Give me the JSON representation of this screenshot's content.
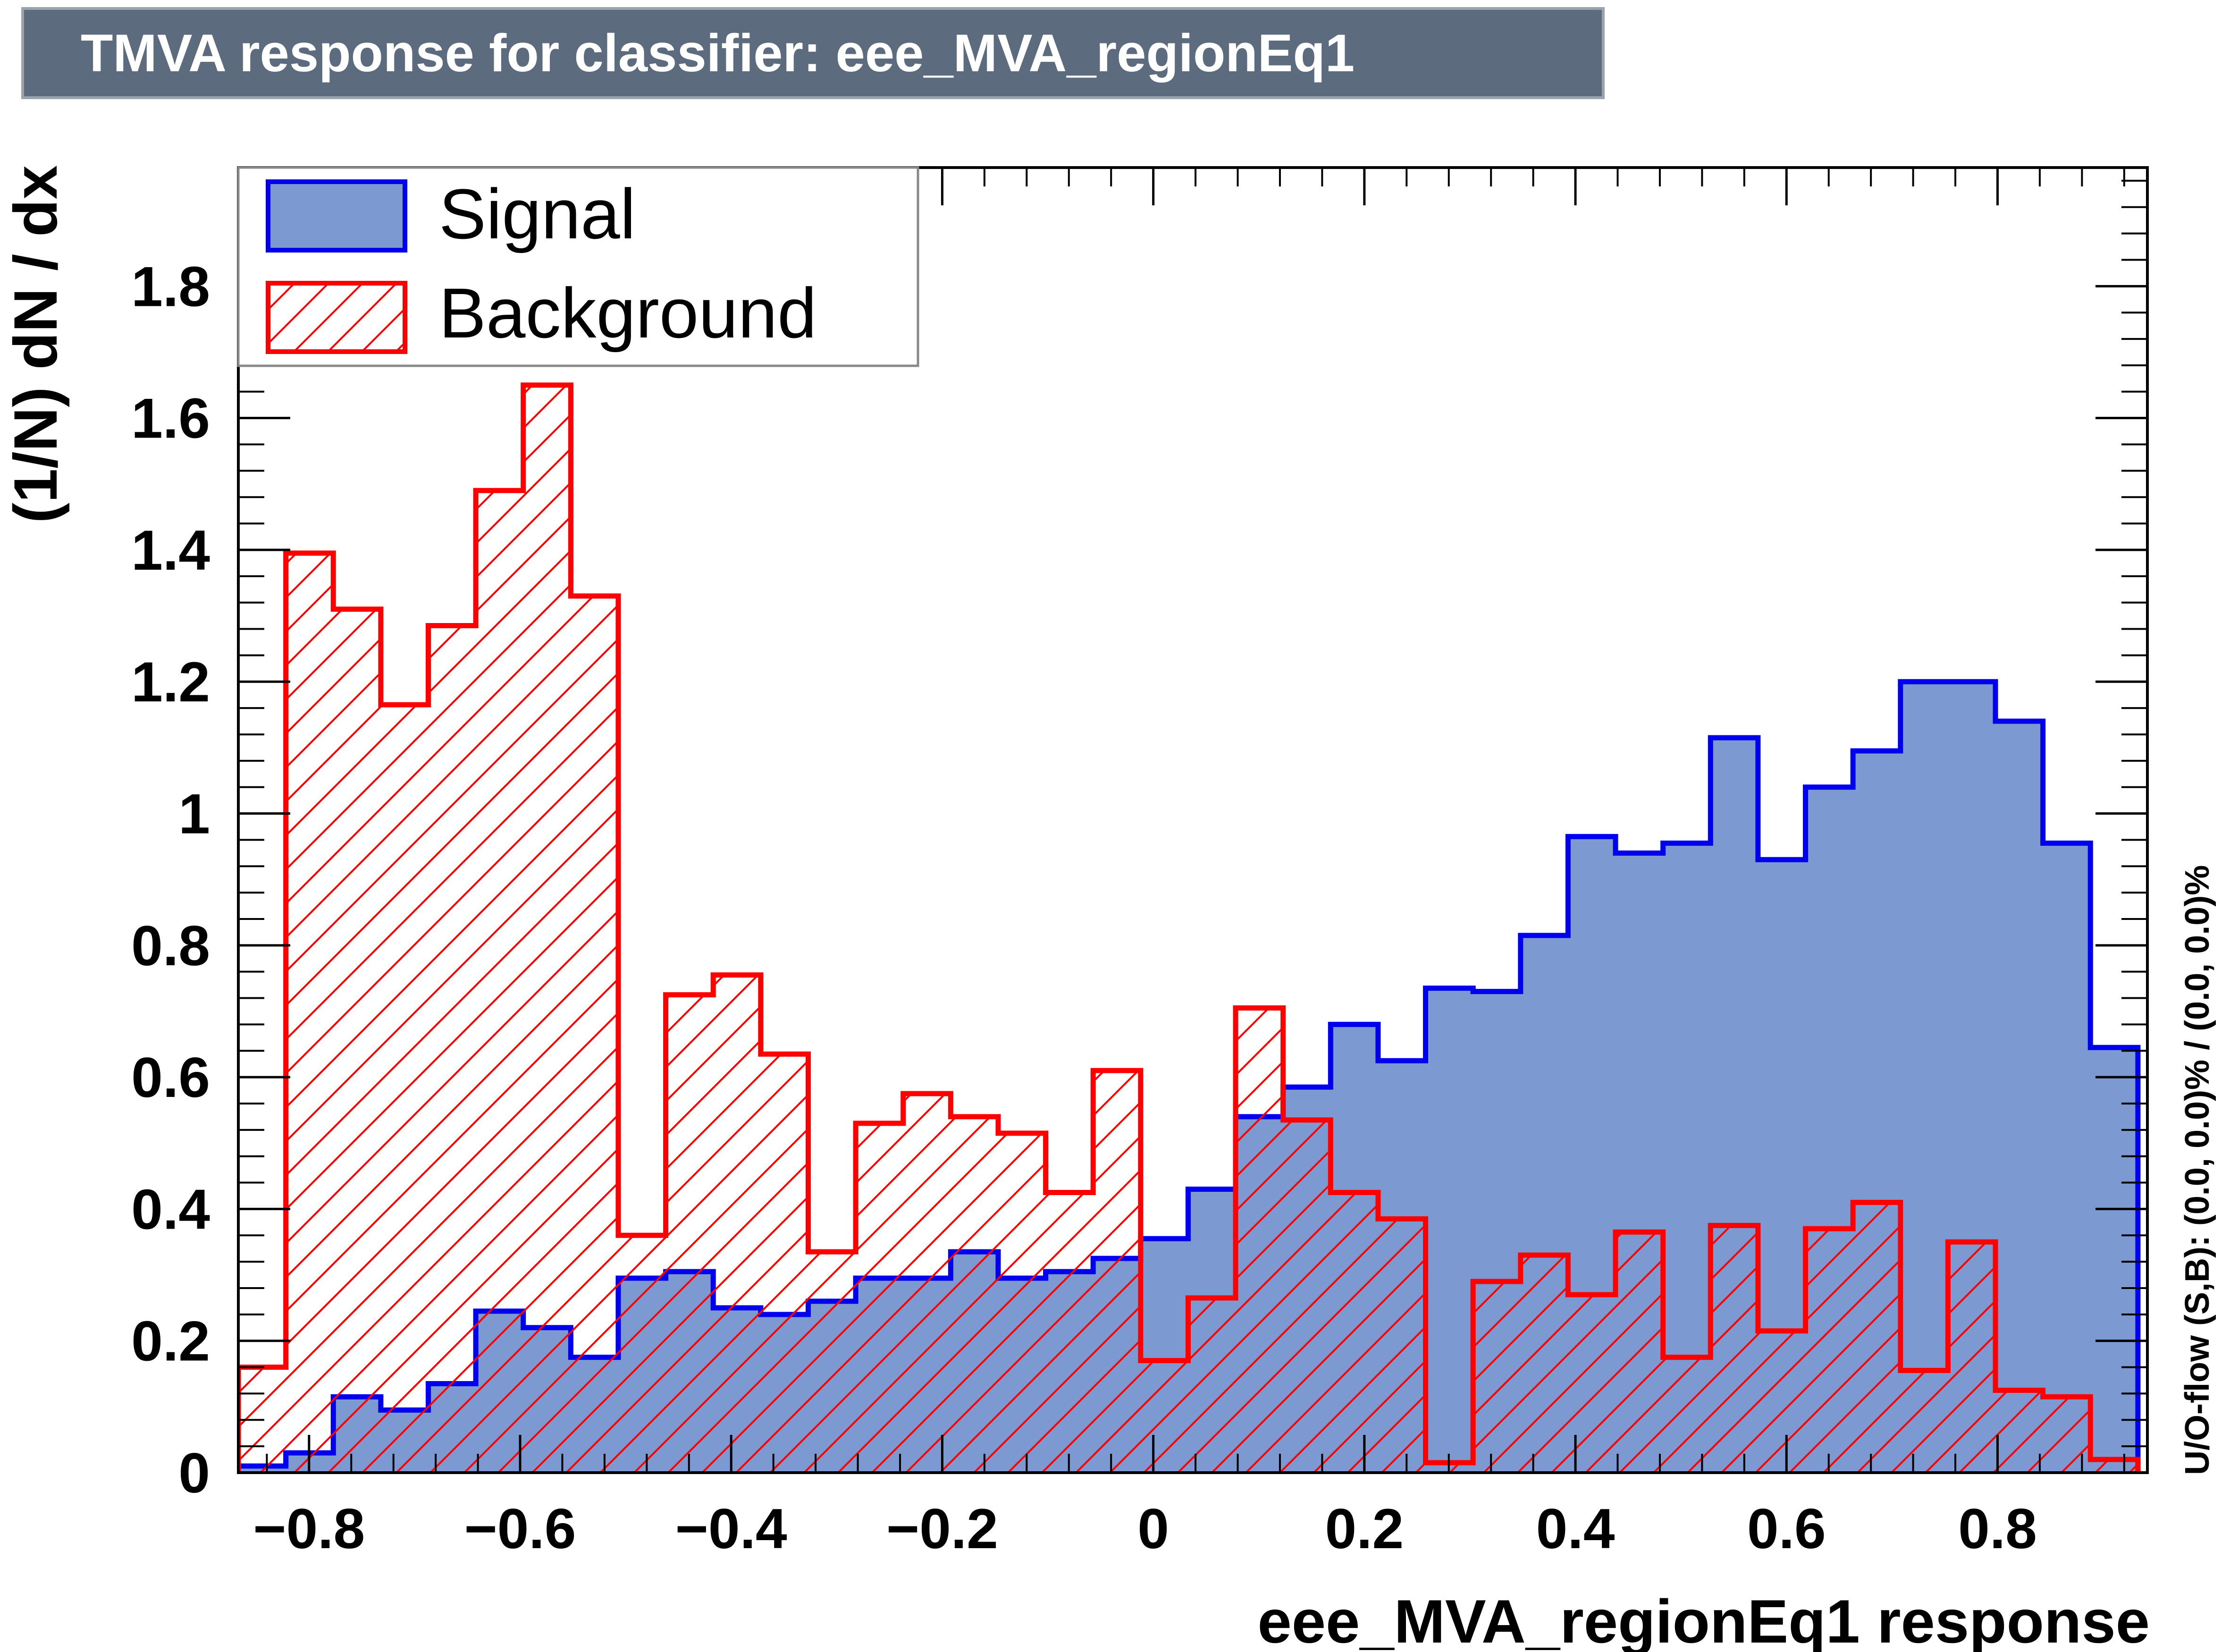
{
  "title": "TMVA response for classifier: eee_MVA_regionEq1",
  "chart_data": {
    "type": "histogram",
    "xlabel": "eee_MVA_regionEq1 response",
    "ylabel": "(1/N) dN / dx",
    "xlim": [
      -0.867,
      0.942
    ],
    "ylim": [
      0,
      1.98
    ],
    "bin_edges": [
      -0.867,
      -0.822,
      -0.777,
      -0.732,
      -0.687,
      -0.642,
      -0.597,
      -0.552,
      -0.507,
      -0.462,
      -0.417,
      -0.372,
      -0.327,
      -0.282,
      -0.237,
      -0.192,
      -0.147,
      -0.102,
      -0.057,
      -0.012,
      0.033,
      0.078,
      0.123,
      0.168,
      0.213,
      0.258,
      0.303,
      0.348,
      0.393,
      0.438,
      0.483,
      0.528,
      0.573,
      0.618,
      0.663,
      0.708,
      0.753,
      0.798,
      0.843,
      0.888,
      0.933
    ],
    "xticks": [
      -0.8,
      -0.6,
      -0.4,
      -0.2,
      0,
      0.2,
      0.4,
      0.6,
      0.8
    ],
    "xtick_labels": [
      "−0.8",
      "−0.6",
      "−0.4",
      "−0.2",
      "0",
      "0.2",
      "0.4",
      "0.6",
      "0.8"
    ],
    "yticks": [
      0,
      0.2,
      0.4,
      0.6,
      0.8,
      1,
      1.2,
      1.4,
      1.6,
      1.8
    ],
    "ytick_labels": [
      "0",
      "0.2",
      "0.4",
      "0.6",
      "0.8",
      "1",
      "1.2",
      "1.4",
      "1.6",
      "1.8"
    ],
    "series": [
      {
        "name": "Signal",
        "style": "filled",
        "fill": "#7d99d1",
        "line": "#0000ee",
        "values": [
          0.01,
          0.03,
          0.115,
          0.095,
          0.135,
          0.245,
          0.22,
          0.175,
          0.295,
          0.305,
          0.25,
          0.24,
          0.26,
          0.295,
          0.295,
          0.335,
          0.295,
          0.305,
          0.325,
          0.355,
          0.43,
          0.54,
          0.585,
          0.68,
          0.625,
          0.735,
          0.73,
          0.815,
          0.965,
          0.94,
          0.955,
          1.115,
          0.93,
          1.04,
          1.095,
          1.2,
          1.2,
          1.14,
          0.955,
          0.645
        ]
      },
      {
        "name": "Background",
        "style": "hatched",
        "fill": "#ff0000",
        "line": "#ff0000",
        "values": [
          0.16,
          1.395,
          1.31,
          1.165,
          1.285,
          1.49,
          1.65,
          1.33,
          0.36,
          0.725,
          0.755,
          0.635,
          0.335,
          0.53,
          0.575,
          0.54,
          0.515,
          0.425,
          0.61,
          0.17,
          0.265,
          0.705,
          0.535,
          0.425,
          0.385,
          0.015,
          0.29,
          0.33,
          0.27,
          0.365,
          0.175,
          0.375,
          0.215,
          0.37,
          0.41,
          0.155,
          0.35,
          0.125,
          0.115,
          0.02
        ]
      }
    ],
    "legend": {
      "position": "top-left",
      "entries": [
        "Signal",
        "Background"
      ]
    },
    "side_annotation": "U/O-flow (S,B): (0.0, 0.0)% / (0.0, 0.0)%"
  }
}
